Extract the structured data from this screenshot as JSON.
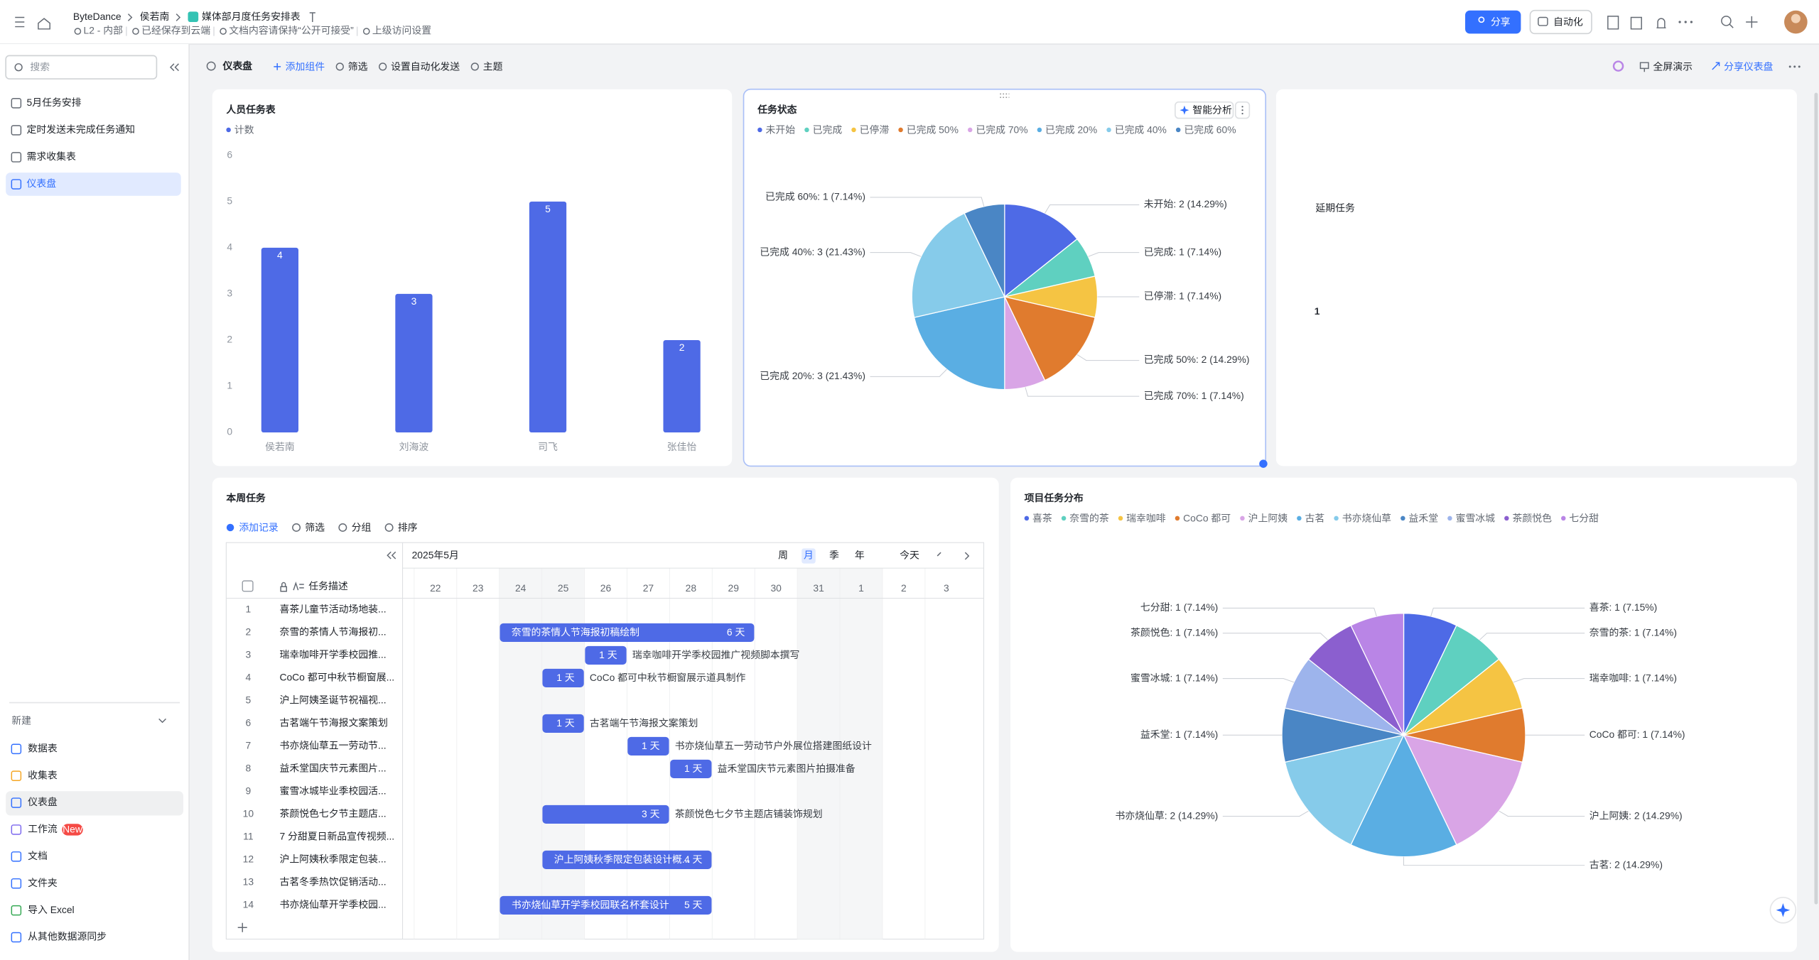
{
  "header": {
    "breadcrumb": [
      "ByteDance",
      "侯若南",
      "媒体部月度任务安排表"
    ],
    "meta": [
      "L2 - 内部",
      "已经保存到云端",
      "文档内容请保持“公开可接受”",
      "上级访问设置"
    ],
    "actions": [
      "分享",
      "自动化"
    ]
  },
  "sidebar": {
    "search_placeholder": "搜索",
    "items": [
      "5月任务安排",
      "定时发送未完成任务通知",
      "需求收集表",
      "仪表盘"
    ],
    "selected_item": 3,
    "new_title": "新建",
    "new_items": [
      "数据表",
      "收集表",
      "仪表盘",
      "工作流",
      "文档",
      "文件夹",
      "导入 Excel",
      "从其他数据源同步"
    ],
    "selected_new_item": 2,
    "badge": "New"
  },
  "toolbar": {
    "title": "仪表盘",
    "actions": [
      "添加组件",
      "筛选",
      "设置自动化发送",
      "主题"
    ],
    "right_actions": [
      "全屏演示",
      "分享仪表盘"
    ]
  },
  "chart_data": [
    {
      "type": "bar",
      "title": "人员任务表",
      "categories": [
        "侯若南",
        "刘海波",
        "司飞",
        "张佳怡"
      ],
      "series": [
        {
          "name": "计数",
          "color": "#4e6ae6",
          "values": [
            4,
            3,
            5,
            2
          ]
        }
      ],
      "ylim": [
        0,
        6
      ],
      "yticks": [
        0,
        1,
        2,
        3,
        4,
        5,
        6
      ],
      "grid": false
    },
    {
      "type": "pie",
      "title": "任务状态",
      "button": "智能分析",
      "categories": [
        "未开始",
        "已完成",
        "已停滞",
        "已完成 50%",
        "已完成 70%",
        "已完成 20%",
        "已完成 40%",
        "已完成 60%"
      ],
      "values": [
        2,
        1,
        1,
        2,
        1,
        3,
        3,
        1
      ],
      "value_labels": [
        "未开始: 2 (14.29%)",
        "已完成: 1 (7.14%)",
        "已停滞: 1 (7.14%)",
        "已完成 50%: 2 (14.29%)",
        "已完成 70%: 1 (7.14%)",
        "已完成 20%: 3 (21.43%)",
        "已完成 40%: 3 (21.43%)",
        "已完成 60%: 1 (7.14%)"
      ],
      "colors": [
        "#4e6ae6",
        "#5fd0c0",
        "#f5c443",
        "#e07b2e",
        "#d9a5e6",
        "#5aaee3",
        "#86cbea",
        "#4a86c5"
      ]
    },
    {
      "type": "metric",
      "title": "延期任务",
      "value": 1
    },
    {
      "type": "pie",
      "title": "项目任务分布",
      "categories": [
        "喜茶",
        "奈雪的茶",
        "瑞幸咖啡",
        "CoCo 都可",
        "沪上阿姨",
        "古茗",
        "书亦烧仙草",
        "益禾堂",
        "蜜雪冰城",
        "茶颜悦色",
        "七分甜"
      ],
      "values": [
        1,
        1,
        1,
        1,
        2,
        2,
        2,
        1,
        1,
        1,
        1
      ],
      "value_labels": [
        "喜茶: 1 (7.15%)",
        "奈雪的茶: 1 (7.14%)",
        "瑞幸咖啡: 1 (7.14%)",
        "CoCo 都可: 1 (7.14%)",
        "沪上阿姨: 2 (14.29%)",
        "古茗: 2 (14.29%)",
        "书亦烧仙草: 2 (14.29%)",
        "益禾堂: 1 (7.14%)",
        "蜜雪冰城: 1 (7.14%)",
        "茶颜悦色: 1 (7.14%)",
        "七分甜: 1 (7.14%)"
      ],
      "colors": [
        "#4e6ae6",
        "#5fd0c0",
        "#f5c443",
        "#e07b2e",
        "#d9a5e6",
        "#5aaee3",
        "#86cbea",
        "#4a86c5",
        "#9db4ec",
        "#8b5fcf",
        "#b985e6"
      ]
    }
  ],
  "weekly_tasks": {
    "title": "本周任务",
    "toolbar": [
      "添加记录",
      "筛选",
      "分组",
      "排序"
    ],
    "month": "2025年5月",
    "views": [
      "周",
      "月",
      "季",
      "年"
    ],
    "selected_view": 1,
    "today": "今天",
    "column_title": "任务描述",
    "days": [
      22,
      23,
      24,
      25,
      26,
      27,
      28,
      29,
      30,
      31,
      1,
      2,
      3
    ],
    "rows": [
      {
        "no": 1,
        "name": "喜茶儿童节活动场地装..."
      },
      {
        "no": 2,
        "name": "奈雪的茶情人节海报初...",
        "start": 24,
        "days": 6,
        "task": "奈雪的茶情人节海报初稿绘制",
        "duration_label": "6 天"
      },
      {
        "no": 3,
        "name": "瑞幸咖啡开学季校园推...",
        "start": 26,
        "days": 1,
        "task": "瑞幸咖啡开学季校园推广视频脚本撰写",
        "duration_label": "1 天"
      },
      {
        "no": 4,
        "name": "CoCo 都可中秋节橱窗展...",
        "start": 25,
        "days": 1,
        "task": "CoCo 都可中秋节橱窗展示道具制作",
        "duration_label": "1 天"
      },
      {
        "no": 5,
        "name": "沪上阿姨圣诞节祝福视..."
      },
      {
        "no": 6,
        "name": "古茗端午节海报文案策划",
        "start": 25,
        "days": 1,
        "task": "古茗端午节海报文案策划",
        "duration_label": "1 天"
      },
      {
        "no": 7,
        "name": "书亦烧仙草五一劳动节...",
        "start": 27,
        "days": 1,
        "task": "书亦烧仙草五一劳动节户外展位搭建图纸设计",
        "duration_label": "1 天"
      },
      {
        "no": 8,
        "name": "益禾堂国庆节元素图片...",
        "start": 28,
        "days": 1,
        "task": "益禾堂国庆节元素图片拍摄准备",
        "duration_label": "1 天"
      },
      {
        "no": 9,
        "name": "蜜雪冰城毕业季校园活..."
      },
      {
        "no": 10,
        "name": "茶颜悦色七夕节主题店...",
        "start": 25,
        "days": 3,
        "task": "茶颜悦色七夕节主题店铺装饰规划",
        "duration_label": "3 天"
      },
      {
        "no": 11,
        "name": "7 分甜夏日新品宣传视频..."
      },
      {
        "no": 12,
        "name": "沪上阿姨秋季限定包装...",
        "start": 25,
        "days": 4,
        "task": "沪上阿姨秋季限定包装设计概...",
        "duration_label": "4 天"
      },
      {
        "no": 13,
        "name": "古茗冬季热饮促销活动..."
      },
      {
        "no": 14,
        "name": "书亦烧仙草开学季校园...",
        "start": 24,
        "days": 5,
        "task": "书亦烧仙草开学季校园联名杯套设计",
        "duration_label": "5 天"
      }
    ]
  }
}
